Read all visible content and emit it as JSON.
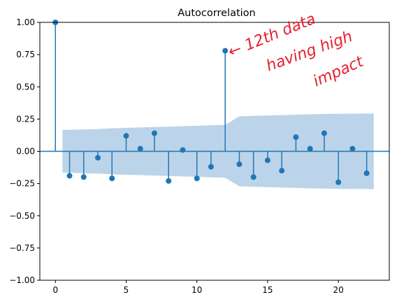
{
  "chart_data": {
    "type": "stem",
    "title": "Autocorrelation",
    "xlabel": "",
    "ylabel": "",
    "xlim": [
      -1.1,
      23.6
    ],
    "ylim": [
      -1.0,
      1.0
    ],
    "x_ticks": [
      0,
      5,
      10,
      15,
      20
    ],
    "y_ticks": [
      -1.0,
      -0.75,
      -0.5,
      -0.25,
      0.0,
      0.25,
      0.5,
      0.75,
      1.0
    ],
    "y_tick_labels": [
      "−1.00",
      "−0.75",
      "−0.50",
      "−0.25",
      "0.00",
      "0.25",
      "0.50",
      "0.75",
      "1.00"
    ],
    "lags": [
      0,
      1,
      2,
      3,
      4,
      5,
      6,
      7,
      8,
      9,
      10,
      11,
      12,
      13,
      14,
      15,
      16,
      17,
      18,
      19,
      20,
      21,
      22
    ],
    "values": [
      1.0,
      -0.19,
      -0.2,
      -0.05,
      -0.21,
      0.12,
      0.02,
      0.14,
      -0.23,
      0.01,
      -0.21,
      -0.12,
      0.78,
      -0.1,
      -0.2,
      -0.07,
      -0.15,
      0.11,
      0.02,
      0.14,
      -0.24,
      0.02,
      -0.17
    ],
    "confidence_band": {
      "x": [
        0.5,
        1,
        2,
        3,
        4,
        5,
        6,
        7,
        8,
        9,
        10,
        11,
        12,
        13,
        14,
        15,
        16,
        17,
        18,
        19,
        20,
        21,
        22,
        22.5
      ],
      "upper": [
        0.165,
        0.167,
        0.17,
        0.173,
        0.178,
        0.182,
        0.185,
        0.188,
        0.191,
        0.195,
        0.198,
        0.202,
        0.205,
        0.272,
        0.275,
        0.278,
        0.281,
        0.284,
        0.287,
        0.289,
        0.291,
        0.292,
        0.293,
        0.294
      ],
      "lower": [
        -0.165,
        -0.167,
        -0.17,
        -0.173,
        -0.178,
        -0.182,
        -0.185,
        -0.188,
        -0.191,
        -0.195,
        -0.198,
        -0.202,
        -0.205,
        -0.272,
        -0.275,
        -0.278,
        -0.281,
        -0.284,
        -0.287,
        -0.289,
        -0.291,
        -0.292,
        -0.293,
        -0.294
      ]
    },
    "colors": {
      "stem": "#1f77b4",
      "band": "#bcd4ea",
      "annotation": "#e8212e"
    },
    "annotation": {
      "lines": [
        "← 12th data",
        "having high",
        "impact"
      ],
      "target_lag": 12
    }
  }
}
